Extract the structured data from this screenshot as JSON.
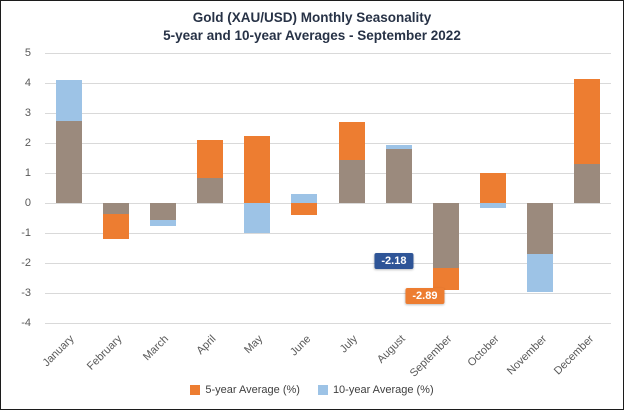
{
  "chart_data": {
    "type": "bar",
    "title": "Gold (XAU/USD) Monthly Seasonality",
    "subtitle": "5-year and 10-year Averages - September 2022",
    "categories": [
      "January",
      "February",
      "March",
      "April",
      "May",
      "June",
      "July",
      "August",
      "September",
      "October",
      "November",
      "December"
    ],
    "series": [
      {
        "name": "5-year Average (%)",
        "color": "#ED7D31",
        "values": [
          2.75,
          -1.2,
          -0.55,
          2.1,
          2.25,
          -0.4,
          2.7,
          1.8,
          -2.89,
          1.0,
          -1.7,
          4.15
        ]
      },
      {
        "name": "10-year Average (%)",
        "color": "#9DC3E6",
        "values": [
          4.1,
          -0.35,
          -0.75,
          0.85,
          -1.0,
          0.3,
          1.45,
          1.95,
          -2.18,
          -0.15,
          -2.95,
          1.3
        ]
      }
    ],
    "overlap_color": "#9B8A7D",
    "ylim": [
      -4,
      5
    ],
    "ytick_step": 1,
    "grid": true,
    "legend_position": "bottom",
    "xlabel": "",
    "ylabel": "",
    "annotations": [
      {
        "text": "-2.18",
        "month": "September",
        "value": -2.18,
        "bg": "#2F5597",
        "fg": "#FFFFFF"
      },
      {
        "text": "-2.89",
        "month": "September",
        "value": -2.89,
        "bg": "#ED7D31",
        "fg": "#FFFFFF"
      }
    ],
    "colors": {
      "gridline": "#D9D9D9",
      "axis_text": "#595959",
      "title_text": "#273246",
      "frame_border": "#1C1C1C",
      "background": "#FFFFFF"
    }
  }
}
